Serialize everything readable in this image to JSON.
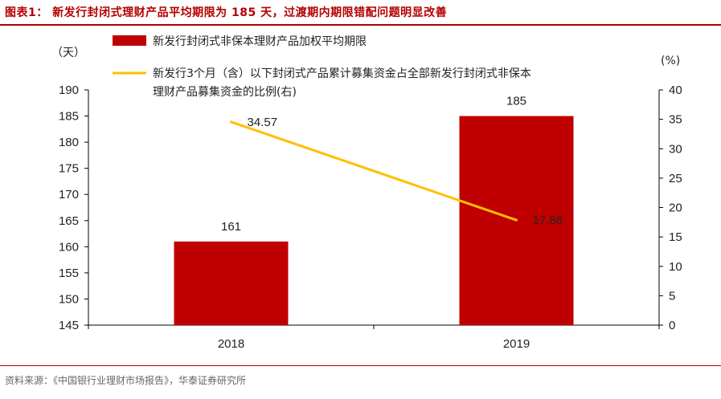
{
  "header": {
    "title": "图表1：  新发行封闭式理财产品平均期限为 185 天，过渡期内期限错配问题明显改善"
  },
  "footer": {
    "source": "资料来源：《中国银行业理财市场报告》，华泰证券研究所"
  },
  "colors": {
    "bar": "#c00000",
    "line": "#ffc000",
    "accent": "#b30000"
  },
  "chart_data": {
    "type": "bar+line",
    "categories": [
      "2018",
      "2019"
    ],
    "left_axis": {
      "unit_label": "（天）",
      "ylim": [
        145,
        190
      ],
      "ticks": [
        "145",
        "150",
        "155",
        "160",
        "165",
        "170",
        "175",
        "180",
        "185",
        "190"
      ]
    },
    "right_axis": {
      "unit_label": "(%)",
      "ylim": [
        0,
        40
      ],
      "ticks": [
        "0",
        "5",
        "10",
        "15",
        "20",
        "25",
        "30",
        "35",
        "40"
      ]
    },
    "series": [
      {
        "name": "新发行封闭式非保本理财产品加权平均期限",
        "type": "bar",
        "axis": "left",
        "values": [
          161,
          185
        ],
        "labels": [
          "161",
          "185"
        ]
      },
      {
        "name": "新发行3个月（含）以下封闭式产品累计募集资金占全部新发行封闭式非保本理财产品募集资金的比例(右)",
        "legend_lines": [
          "新发行3个月（含）以下封闭式产品累计募集资金占全部新发行封闭式非保本",
          "理财产品募集资金的比例(右)"
        ],
        "type": "line",
        "axis": "right",
        "values": [
          34.57,
          17.86
        ],
        "labels": [
          "34.57",
          "17.86"
        ]
      }
    ],
    "legend_position": "top"
  }
}
